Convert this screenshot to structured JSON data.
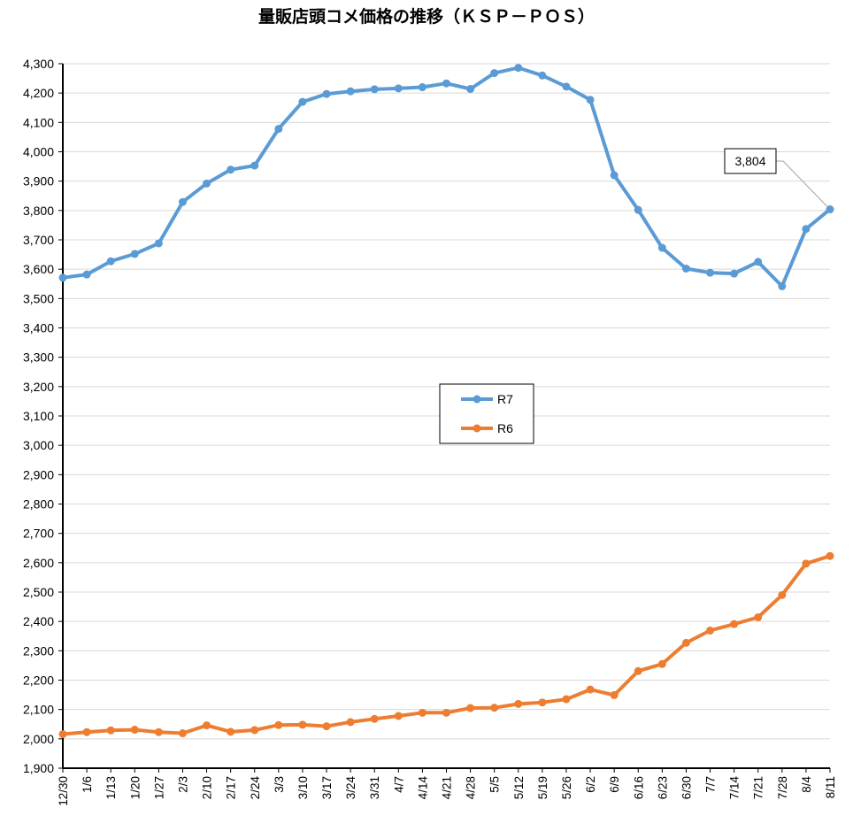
{
  "chart_data": {
    "type": "line",
    "title": "量販店頭コメ価格の推移（ＫＳＰ－ＰＯＳ）",
    "xlabel": "",
    "ylabel": "",
    "ylim": [
      1900,
      4300
    ],
    "ytick_step": 100,
    "grid": true,
    "legend_position": "center",
    "categories": [
      "12/30",
      "1/6",
      "1/13",
      "1/20",
      "1/27",
      "2/3",
      "2/10",
      "2/17",
      "2/24",
      "3/3",
      "3/10",
      "3/17",
      "3/24",
      "3/31",
      "4/7",
      "4/14",
      "4/21",
      "4/28",
      "5/5",
      "5/12",
      "5/19",
      "5/26",
      "6/2",
      "6/9",
      "6/16",
      "6/23",
      "6/30",
      "7/7",
      "7/14",
      "7/21",
      "7/28",
      "8/4",
      "8/11"
    ],
    "series": [
      {
        "name": "R7",
        "color": "#5b9bd5",
        "values": [
          3571,
          3582,
          3627,
          3652,
          3688,
          3829,
          3892,
          3939,
          3953,
          4078,
          4170,
          4197,
          4206,
          4213,
          4216,
          4220,
          4233,
          4214,
          4268,
          4286,
          4260,
          4222,
          4177,
          3920,
          3802,
          3673,
          3602,
          3588,
          3585,
          3625,
          3542,
          3737,
          3804
        ]
      },
      {
        "name": "R6",
        "color": "#ed7d31",
        "values": [
          2016,
          2023,
          2029,
          2031,
          2023,
          2019,
          2046,
          2024,
          2030,
          2047,
          2048,
          2043,
          2057,
          2068,
          2078,
          2089,
          2089,
          2105,
          2106,
          2119,
          2124,
          2135,
          2168,
          2149,
          2231,
          2255,
          2327,
          2369,
          2391,
          2414,
          2490,
          2597,
          2623
        ]
      }
    ],
    "annotation": {
      "series": "R7",
      "category": "8/11",
      "text": "3,804"
    }
  }
}
